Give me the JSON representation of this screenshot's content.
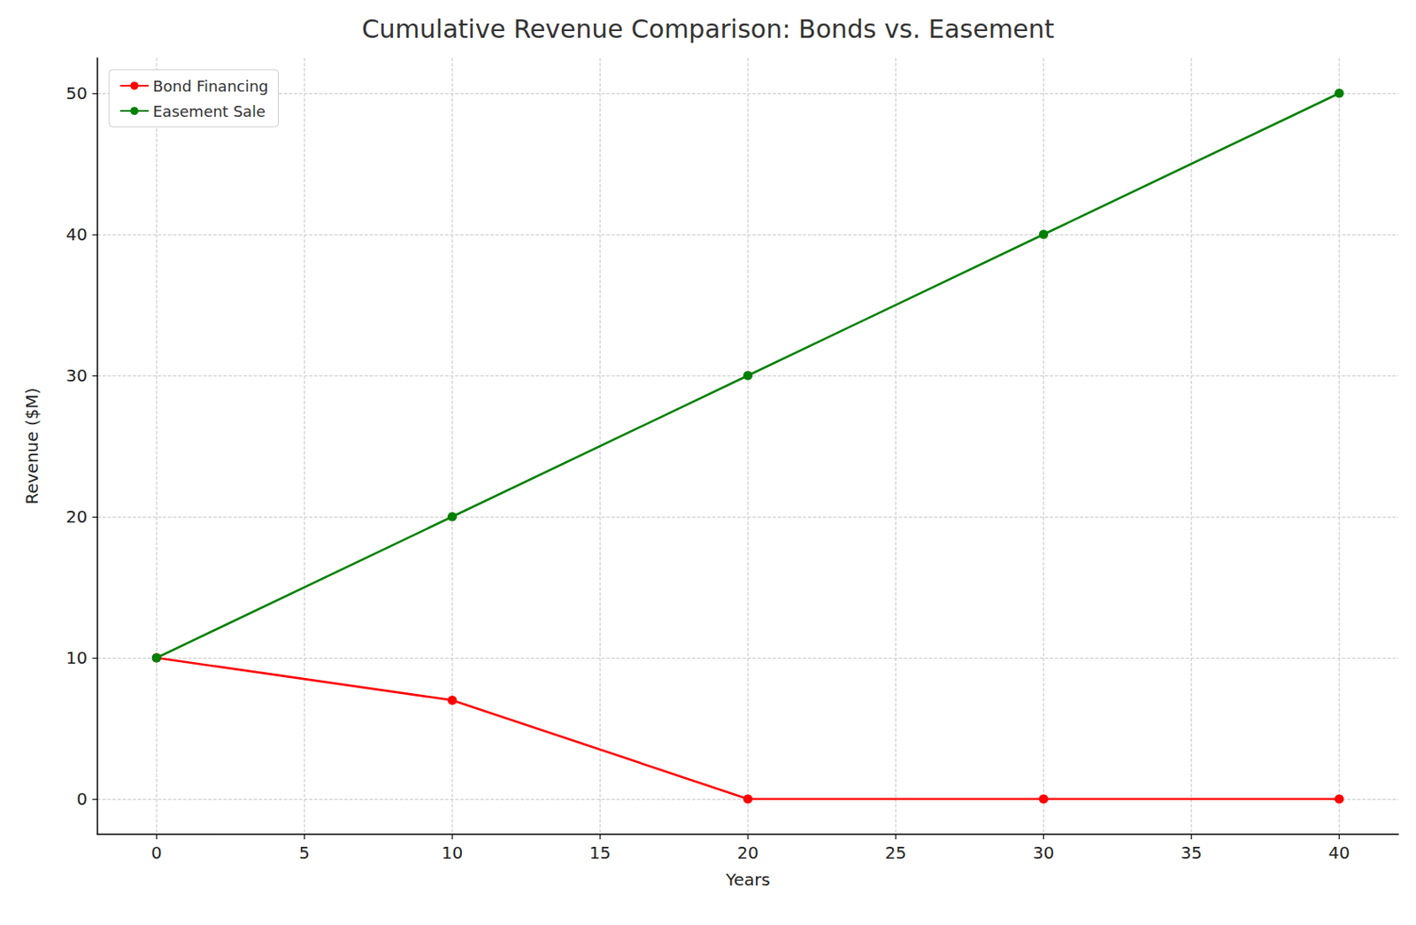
{
  "chart_data": {
    "type": "line",
    "title": "Cumulative Revenue Comparison: Bonds vs. Easement",
    "xlabel": "Years",
    "ylabel": "Revenue ($M)",
    "x": [
      0,
      10,
      20,
      30,
      40
    ],
    "series": [
      {
        "name": "Bond Financing",
        "color": "#ff0000",
        "marker": "circle",
        "values": [
          10,
          7,
          0,
          0,
          0
        ]
      },
      {
        "name": "Easement Sale",
        "color": "#008000",
        "marker": "circle",
        "values": [
          10,
          20,
          30,
          40,
          50
        ]
      }
    ],
    "xlim": [
      -2,
      42
    ],
    "xticks": [
      0,
      5,
      10,
      15,
      20,
      25,
      30,
      35,
      40
    ],
    "ylim": [
      -2.5,
      52.5
    ],
    "yticks": [
      0,
      10,
      20,
      30,
      40,
      50
    ],
    "grid": true,
    "legend": "upper left"
  }
}
